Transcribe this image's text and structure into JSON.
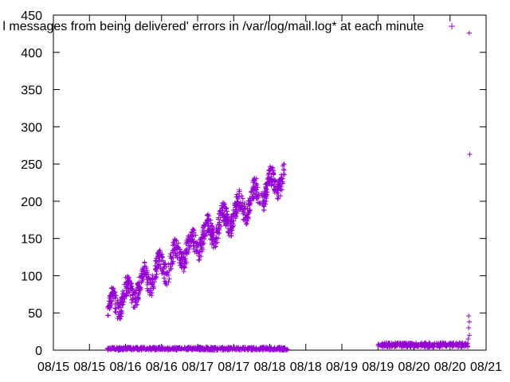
{
  "chart_data": {
    "type": "scatter",
    "title": "",
    "xlabel": "",
    "ylabel": "",
    "x_ticks": [
      "08/15",
      "08/15",
      "08/16",
      "08/16",
      "08/17",
      "08/17",
      "08/18",
      "08/18",
      "08/19",
      "08/19",
      "08/20",
      "08/20",
      "08/21"
    ],
    "y_ticks": [
      "0",
      "50",
      "100",
      "150",
      "200",
      "250",
      "300",
      "350",
      "400",
      "450"
    ],
    "ylim": [
      0,
      450
    ],
    "xlim_hours": [
      0,
      144
    ],
    "grid": false,
    "legend_position": "top-right",
    "marker": "+",
    "series": [
      {
        "name": "l messages from being delivered' errors in /var/log/mail.log* at each minute",
        "color": "#9400d3",
        "segments": [
          {
            "label": "rising band",
            "x_range": [
              18,
              77
            ],
            "y_range": [
              40,
              260
            ]
          },
          {
            "label": "baseline low",
            "x_range": [
              18,
              78
            ],
            "y_range": [
              0,
              4
            ]
          },
          {
            "label": "baseline later",
            "x_range": [
              108,
              138
            ],
            "y_range": [
              4,
              10
            ]
          },
          {
            "label": "spike",
            "x_range": [
              138,
              139
            ],
            "y_values": [
              426,
              263,
              46,
              38,
              30,
              20,
              15
            ]
          }
        ]
      }
    ]
  }
}
